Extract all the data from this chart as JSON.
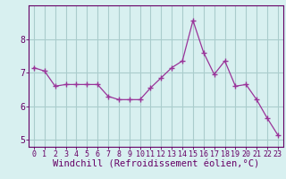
{
  "x": [
    0,
    1,
    2,
    3,
    4,
    5,
    6,
    7,
    8,
    9,
    10,
    11,
    12,
    13,
    14,
    15,
    16,
    17,
    18,
    19,
    20,
    21,
    22,
    23
  ],
  "y": [
    7.15,
    7.05,
    6.6,
    6.65,
    6.65,
    6.65,
    6.65,
    6.3,
    6.2,
    6.2,
    6.2,
    6.55,
    6.85,
    7.15,
    7.35,
    8.55,
    7.6,
    6.95,
    7.35,
    6.6,
    6.65,
    6.2,
    5.65,
    5.15
  ],
  "line_color": "#993399",
  "marker": "+",
  "bg_color": "#d8f0f0",
  "grid_color": "#aacccc",
  "xlabel": "Windchill (Refroidissement éolien,°C)",
  "xlim": [
    -0.5,
    23.5
  ],
  "ylim": [
    4.8,
    9.0
  ],
  "yticks": [
    5,
    6,
    7,
    8
  ],
  "xticks": [
    0,
    1,
    2,
    3,
    4,
    5,
    6,
    7,
    8,
    9,
    10,
    11,
    12,
    13,
    14,
    15,
    16,
    17,
    18,
    19,
    20,
    21,
    22,
    23
  ],
  "tick_color": "#660066",
  "axis_color": "#660066",
  "xlabel_fontsize": 7.5,
  "tick_fontsize": 6.0,
  "ytick_fontsize": 7.0
}
